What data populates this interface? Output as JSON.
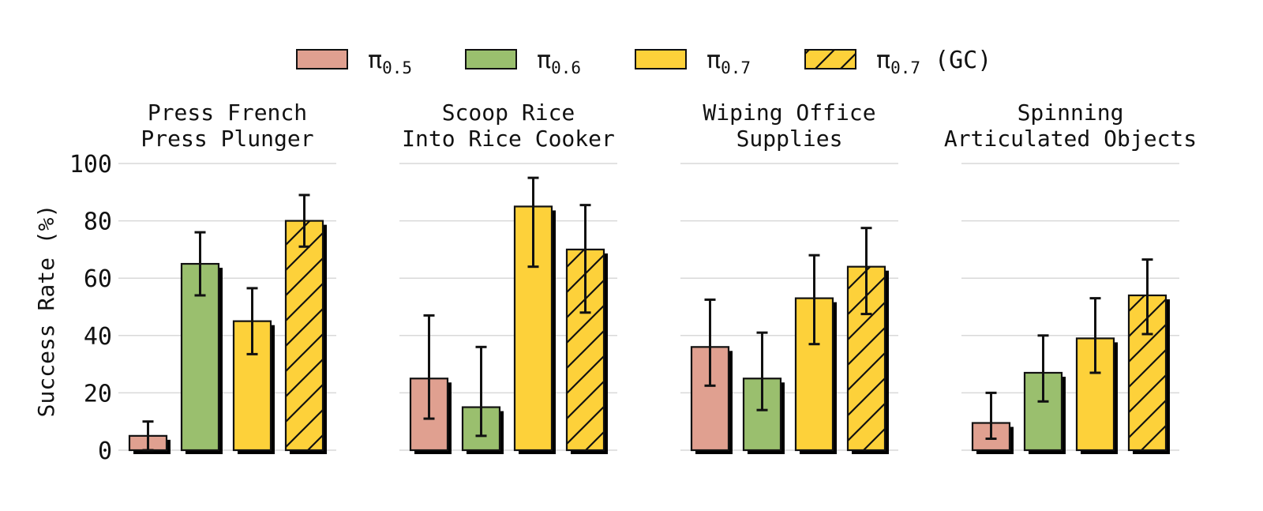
{
  "chart_data": {
    "type": "bar",
    "ylabel": "Success Rate (%)",
    "ylim": [
      0,
      100
    ],
    "yticks": [
      "0",
      "20",
      "40",
      "60",
      "80",
      "100"
    ],
    "grid": true,
    "legend_position": "top",
    "legend": [
      {
        "symbol": "π",
        "sub": "0.5",
        "suffix": "",
        "color": "#E0A090",
        "hatch": false
      },
      {
        "symbol": "π",
        "sub": "0.6",
        "suffix": "",
        "color": "#9ABF6E",
        "hatch": false
      },
      {
        "symbol": "π",
        "sub": "0.7",
        "suffix": "",
        "color": "#FDD13A",
        "hatch": false
      },
      {
        "symbol": "π",
        "sub": "0.7",
        "suffix": " (GC)",
        "color": "#FDD13A",
        "hatch": true
      }
    ],
    "panels": [
      {
        "title_lines": [
          "Press French",
          "Press Plunger"
        ],
        "values": [
          5,
          65,
          45,
          80
        ],
        "err_low": [
          0,
          54,
          33.5,
          71
        ],
        "err_high": [
          10,
          76,
          56.5,
          89
        ]
      },
      {
        "title_lines": [
          "Scoop Rice",
          "Into Rice Cooker"
        ],
        "values": [
          25,
          15,
          85,
          70
        ],
        "err_low": [
          11,
          5,
          64,
          48
        ],
        "err_high": [
          47,
          36,
          95,
          85.5
        ]
      },
      {
        "title_lines": [
          "Wiping Office",
          "Supplies"
        ],
        "values": [
          36,
          25,
          53,
          64
        ],
        "err_low": [
          22.5,
          14,
          37,
          47.5
        ],
        "err_high": [
          52.5,
          41,
          68,
          77.5
        ]
      },
      {
        "title_lines": [
          "Spinning",
          "Articulated Objects"
        ],
        "values": [
          9.5,
          27,
          39,
          54
        ],
        "err_low": [
          4,
          17,
          27,
          40.5
        ],
        "err_high": [
          20,
          40,
          53,
          66.5
        ]
      }
    ]
  }
}
